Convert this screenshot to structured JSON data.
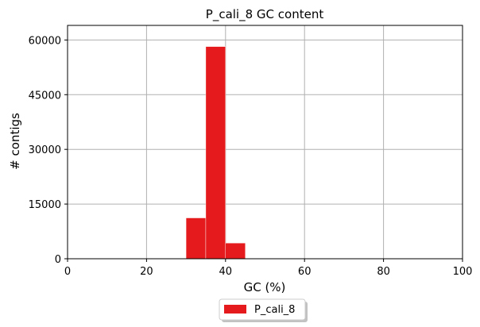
{
  "chart_data": {
    "type": "bar",
    "title": "P_cali_8 GC content",
    "xlabel": "GC (%)",
    "ylabel": "# contigs",
    "xlim": [
      0,
      100
    ],
    "ylim": [
      0,
      64000
    ],
    "xticks": [
      0,
      20,
      40,
      60,
      80,
      100
    ],
    "yticks": [
      0,
      15000,
      30000,
      45000,
      60000
    ],
    "grid": true,
    "legend_position": "bottom-center",
    "series": [
      {
        "name": "P_cali_8",
        "color": "#e41a1c",
        "bins": [
          {
            "x0": 30,
            "x1": 35,
            "value": 11200
          },
          {
            "x0": 35,
            "x1": 40,
            "value": 58200
          },
          {
            "x0": 40,
            "x1": 45,
            "value": 4300
          }
        ]
      }
    ]
  }
}
